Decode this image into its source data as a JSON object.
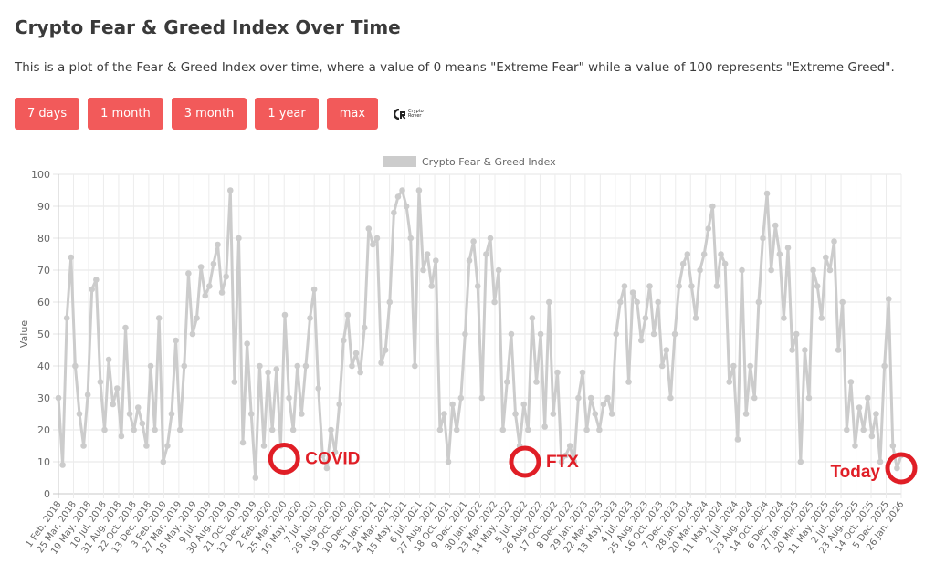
{
  "page": {
    "title": "Crypto Fear & Greed Index Over Time",
    "subtitle": "This is a plot of the Fear & Greed Index over time, where a value of 0 means \"Extreme Fear\" while a value of 100 represents \"Extreme Greed\".",
    "buttons": [
      "7 days",
      "1 month",
      "3 month",
      "1 year",
      "max"
    ],
    "logo": {
      "line1": "Crypto",
      "line2": "Rover",
      "icon": "cryptorover-logo-icon"
    },
    "accent_color": "#f25a5a"
  },
  "chart_data": {
    "type": "line",
    "title": "",
    "legend": {
      "label": "Crypto Fear & Greed Index",
      "position": "top-center"
    },
    "ylabel": "Value",
    "xlabel": "",
    "ylim": [
      0,
      100
    ],
    "yticks": [
      0,
      10,
      20,
      30,
      40,
      50,
      60,
      70,
      80,
      90,
      100
    ],
    "grid": true,
    "series_color": "#cccccc",
    "xticks": [
      "1 Feb, 2018",
      "25 Mar, 2018",
      "19 May, 2018",
      "10 Jul, 2018",
      "31 Aug, 2018",
      "22 Oct, 2018",
      "13 Dec, 2018",
      "3 Feb, 2019",
      "27 Mar, 2019",
      "18 May, 2019",
      "9 Jul, 2019",
      "30 Aug, 2019",
      "21 Oct, 2019",
      "12 Dec, 2019",
      "2 Feb, 2020",
      "25 Mar, 2020",
      "16 May, 2020",
      "7 Jul, 2020",
      "28 Aug, 2020",
      "19 Oct, 2020",
      "10 Dec, 2020",
      "31 Jan, 2021",
      "24 Mar, 2021",
      "15 May, 2021",
      "6 Jul, 2021",
      "27 Aug, 2021",
      "18 Oct, 2021",
      "9 Dec, 2021",
      "30 Jan, 2022",
      "23 Mar, 2022",
      "14 May, 2022",
      "5 Jul, 2022",
      "26 Aug, 2022",
      "17 Oct, 2022",
      "8 Dec, 2022",
      "29 Jan, 2023",
      "22 Mar, 2023",
      "13 May, 2023",
      "4 Jul, 2023",
      "25 Aug, 2023",
      "16 Oct, 2023",
      "7 Dec, 2023",
      "28 Jan, 2024",
      "20 Mar, 2024",
      "11 May, 2024",
      "2 Jul, 2024",
      "23 Aug, 2024",
      "14 Oct, 2024",
      "6 Dec, 2024",
      "27 Jan, 2025",
      "20 Mar, 2025",
      "11 May, 2025",
      "2 Jul, 2025",
      "23 Aug, 2025",
      "14 Oct, 2025",
      "5 Dec, 2025",
      "26 Jan, 2026"
    ],
    "series": [
      {
        "name": "Crypto Fear & Greed Index",
        "values": [
          30,
          9,
          55,
          74,
          40,
          25,
          15,
          31,
          64,
          67,
          35,
          20,
          42,
          28,
          33,
          18,
          52,
          25,
          20,
          27,
          22,
          15,
          40,
          20,
          55,
          10,
          15,
          25,
          48,
          20,
          40,
          69,
          50,
          55,
          71,
          62,
          65,
          72,
          78,
          63,
          68,
          95,
          35,
          80,
          16,
          47,
          25,
          5,
          40,
          15,
          38,
          20,
          39,
          15,
          56,
          30,
          20,
          40,
          25,
          40,
          55,
          64,
          33,
          12,
          8,
          20,
          13,
          28,
          48,
          56,
          40,
          44,
          38,
          52,
          83,
          78,
          80,
          41,
          45,
          60,
          88,
          93,
          95,
          90,
          80,
          40,
          95,
          70,
          75,
          65,
          73,
          20,
          25,
          10,
          28,
          20,
          30,
          50,
          73,
          79,
          65,
          30,
          75,
          80,
          60,
          70,
          20,
          35,
          50,
          25,
          15,
          28,
          20,
          55,
          35,
          50,
          21,
          60,
          25,
          38,
          10,
          12,
          15,
          10,
          30,
          38,
          20,
          30,
          25,
          20,
          28,
          30,
          25,
          50,
          60,
          65,
          35,
          63,
          60,
          48,
          55,
          65,
          50,
          60,
          40,
          45,
          30,
          50,
          65,
          72,
          75,
          65,
          55,
          70,
          75,
          83,
          90,
          65,
          75,
          72,
          35,
          40,
          17,
          70,
          25,
          40,
          30,
          60,
          80,
          94,
          70,
          84,
          75,
          55,
          77,
          45,
          50,
          10,
          45,
          30,
          70,
          65,
          55,
          74,
          70,
          79,
          45,
          60,
          20,
          35,
          15,
          27,
          20,
          30,
          18,
          25,
          10,
          40,
          61,
          15,
          8,
          12
        ]
      }
    ],
    "annotations": [
      {
        "label": "COVID",
        "x_tick": "25 Mar, 2020",
        "value": 11
      },
      {
        "label": "FTX",
        "x_tick": "5 Jul, 2022",
        "value": 10
      },
      {
        "label": "Today",
        "x_tick": "26 Jan, 2026",
        "value": 8
      }
    ]
  }
}
